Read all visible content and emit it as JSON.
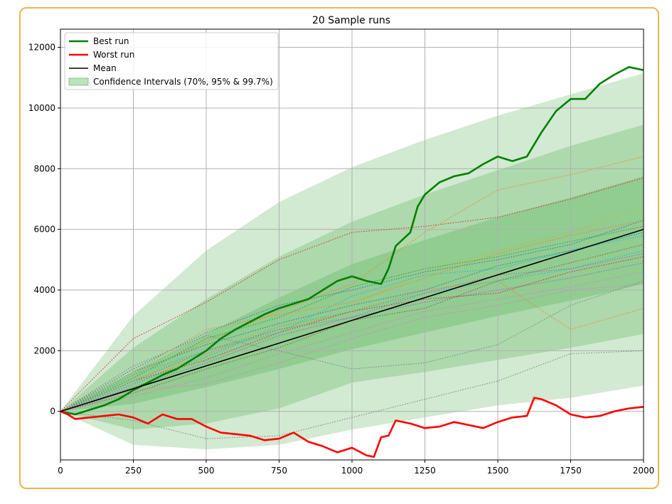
{
  "chart_data": {
    "type": "line",
    "title": "20 Sample runs",
    "xlabel": "",
    "ylabel": "",
    "xlim": [
      0,
      2000
    ],
    "ylim": [
      -1600,
      12600
    ],
    "x_ticks": [
      0,
      250,
      500,
      750,
      1000,
      1250,
      1500,
      1750,
      2000
    ],
    "y_ticks": [
      0,
      2000,
      4000,
      6000,
      8000,
      10000,
      12000
    ],
    "grid": true,
    "legend_position": "top-left",
    "colors": {
      "best": "#008000",
      "worst": "#ff0000",
      "mean": "#000000",
      "band": "#2ca02c",
      "grid": "#b0b0b0",
      "frame": "#e8b74c"
    },
    "legend": [
      {
        "label": "Best run",
        "style": "best"
      },
      {
        "label": "Worst run",
        "style": "worst"
      },
      {
        "label": "Mean",
        "style": "mean"
      },
      {
        "label": "Confidence Intervals (70%, 95% & 99.7%)",
        "style": "band"
      }
    ],
    "mean": {
      "x": [
        0,
        2000
      ],
      "y": [
        0,
        6000
      ]
    },
    "confidence_bands": [
      {
        "level": "99.7%",
        "x": [
          0,
          250,
          500,
          750,
          1000,
          1250,
          1500,
          1750,
          2000
        ],
        "upper": [
          0,
          3150,
          5300,
          6900,
          8050,
          8950,
          9750,
          10450,
          11150
        ],
        "lower": [
          0,
          -1100,
          -1250,
          -1100,
          -600,
          -200,
          200,
          450,
          850
        ]
      },
      {
        "level": "95%",
        "x": [
          0,
          250,
          500,
          750,
          1000,
          1250,
          1500,
          1750,
          2000
        ],
        "upper": [
          0,
          2100,
          3700,
          5100,
          6250,
          7150,
          7950,
          8750,
          9450
        ],
        "lower": [
          0,
          -600,
          -400,
          100,
          950,
          1300,
          1700,
          2100,
          2550
        ]
      },
      {
        "level": "70%",
        "x": [
          0,
          250,
          500,
          750,
          1000,
          1250,
          1500,
          1750,
          2000
        ],
        "upper": [
          0,
          1300,
          2550,
          3750,
          4850,
          5650,
          6400,
          7050,
          7750
        ],
        "lower": [
          0,
          250,
          800,
          1400,
          2050,
          2600,
          3150,
          3650,
          4200
        ]
      }
    ],
    "series": [
      {
        "name": "Best run",
        "style": "best",
        "x": [
          0,
          50,
          100,
          150,
          200,
          250,
          300,
          350,
          400,
          450,
          500,
          550,
          600,
          650,
          700,
          750,
          800,
          850,
          900,
          950,
          1000,
          1050,
          1100,
          1125,
          1150,
          1200,
          1225,
          1250,
          1300,
          1350,
          1400,
          1450,
          1500,
          1550,
          1600,
          1650,
          1700,
          1750,
          1800,
          1850,
          1900,
          1950,
          2000
        ],
        "y": [
          0,
          -100,
          50,
          200,
          400,
          700,
          950,
          1200,
          1400,
          1700,
          2000,
          2400,
          2700,
          2950,
          3200,
          3400,
          3550,
          3700,
          4000,
          4300,
          4450,
          4300,
          4200,
          4700,
          5450,
          5900,
          6750,
          7150,
          7550,
          7750,
          7850,
          8150,
          8400,
          8250,
          8400,
          9200,
          9900,
          10300,
          10300,
          10800,
          11100,
          11350,
          11250
        ]
      },
      {
        "name": "Worst run",
        "style": "worst",
        "x": [
          0,
          25,
          50,
          100,
          150,
          200,
          250,
          300,
          350,
          400,
          450,
          500,
          550,
          600,
          650,
          700,
          750,
          800,
          850,
          900,
          950,
          1000,
          1050,
          1075,
          1100,
          1125,
          1150,
          1200,
          1250,
          1300,
          1350,
          1400,
          1450,
          1500,
          1550,
          1600,
          1625,
          1650,
          1700,
          1750,
          1800,
          1850,
          1900,
          1950,
          2000
        ],
        "y": [
          0,
          -100,
          -250,
          -200,
          -150,
          -100,
          -200,
          -400,
          -100,
          -250,
          -250,
          -500,
          -700,
          -750,
          -800,
          -950,
          -900,
          -700,
          -1000,
          -1150,
          -1350,
          -1200,
          -1450,
          -1500,
          -850,
          -800,
          -300,
          -400,
          -550,
          -500,
          -350,
          -450,
          -550,
          -350,
          -200,
          -150,
          450,
          400,
          200,
          -100,
          -200,
          -150,
          0,
          100,
          150
        ]
      },
      {
        "name": "",
        "style": "dotted",
        "color": "#d62728",
        "x": [
          0,
          250,
          500,
          750,
          1000,
          1250,
          1500,
          1750,
          2000
        ],
        "y": [
          0,
          2400,
          3600,
          5000,
          5900,
          6100,
          6400,
          7000,
          7700
        ]
      },
      {
        "name": "",
        "style": "dotted",
        "color": "#ff7f0e",
        "x": [
          0,
          250,
          500,
          750,
          1000,
          1250,
          1500,
          1750,
          2000
        ],
        "y": [
          0,
          1200,
          2300,
          3300,
          4200,
          5900,
          7300,
          7800,
          8400
        ]
      },
      {
        "name": "",
        "style": "dotted",
        "color": "#ff7f0e",
        "x": [
          0,
          250,
          500,
          750,
          1000,
          1250,
          1500,
          1750,
          2000
        ],
        "y": [
          0,
          900,
          1900,
          2700,
          3300,
          4000,
          4300,
          2700,
          3400
        ]
      },
      {
        "name": "",
        "style": "dotted",
        "color": "#7f7f7f",
        "x": [
          0,
          250,
          500,
          750,
          1000,
          1250,
          1500,
          1750,
          2000
        ],
        "y": [
          0,
          -300,
          -900,
          -800,
          -200,
          400,
          1000,
          1900,
          2000
        ]
      },
      {
        "name": "",
        "style": "dotted",
        "color": "#7f7f7f",
        "x": [
          0,
          250,
          500,
          750,
          1000,
          1250,
          1500,
          1750,
          2000
        ],
        "y": [
          0,
          1500,
          2500,
          2000,
          1400,
          1600,
          2200,
          3500,
          4300
        ]
      },
      {
        "name": "",
        "style": "dotted",
        "color": "#1f77b4",
        "x": [
          0,
          250,
          500,
          750,
          1000,
          1250,
          1500,
          1750,
          2000
        ],
        "y": [
          0,
          1300,
          2200,
          2900,
          3500,
          4000,
          4800,
          5300,
          5900
        ]
      },
      {
        "name": "",
        "style": "dotted",
        "color": "#17becf",
        "x": [
          0,
          250,
          500,
          750,
          1000,
          1250,
          1500,
          1750,
          2000
        ],
        "y": [
          0,
          900,
          1800,
          2800,
          3300,
          3900,
          4300,
          4700,
          5300
        ]
      },
      {
        "name": "",
        "style": "dotted",
        "color": "#e377c2",
        "x": [
          0,
          250,
          500,
          750,
          1000,
          1250,
          1500,
          1750,
          2000
        ],
        "y": [
          0,
          700,
          900,
          1600,
          2400,
          3100,
          3500,
          4000,
          4200
        ]
      },
      {
        "name": "",
        "style": "dotted",
        "color": "#9467bd",
        "x": [
          0,
          250,
          500,
          750,
          1000,
          1250,
          1500,
          1750,
          2000
        ],
        "y": [
          0,
          800,
          1600,
          2500,
          3100,
          3600,
          4000,
          4400,
          4900
        ]
      },
      {
        "name": "",
        "style": "dotted",
        "color": "#bcbd22",
        "x": [
          0,
          250,
          500,
          750,
          1000,
          1250,
          1500,
          1750,
          2000
        ],
        "y": [
          0,
          1100,
          2000,
          2800,
          3500,
          4600,
          5300,
          5900,
          6700
        ]
      },
      {
        "name": "",
        "style": "dotted",
        "color": "#2ca02c",
        "x": [
          0,
          250,
          500,
          750,
          1000,
          1250,
          1500,
          1750,
          2000
        ],
        "y": [
          0,
          1100,
          2400,
          3100,
          4100,
          4700,
          5100,
          5600,
          6100
        ]
      },
      {
        "name": "",
        "style": "dotted",
        "color": "#8c564b",
        "x": [
          0,
          250,
          500,
          750,
          1000,
          1250,
          1500,
          1750,
          2000
        ],
        "y": [
          0,
          600,
          1400,
          2100,
          3000,
          3400,
          4300,
          4900,
          5500
        ]
      },
      {
        "name": "",
        "style": "dotted",
        "color": "#d62728",
        "x": [
          0,
          250,
          500,
          750,
          1000,
          1250,
          1500,
          1750,
          2000
        ],
        "y": [
          0,
          1000,
          1700,
          2600,
          3300,
          3700,
          3900,
          4600,
          5100
        ]
      },
      {
        "name": "",
        "style": "dotted",
        "color": "#1f77b4",
        "x": [
          0,
          250,
          500,
          750,
          1000,
          1250,
          1500,
          1750,
          2000
        ],
        "y": [
          0,
          1400,
          2600,
          3500,
          4000,
          4600,
          5000,
          5500,
          6300
        ]
      },
      {
        "name": "",
        "style": "dotted",
        "color": "#17becf",
        "x": [
          0,
          250,
          500,
          750,
          1000,
          1250,
          1500,
          1750,
          2000
        ],
        "y": [
          0,
          1200,
          2000,
          2600,
          3800,
          4500,
          4700,
          5300,
          5800
        ]
      },
      {
        "name": "",
        "style": "dotted",
        "color": "#e377c2",
        "x": [
          0,
          250,
          500,
          750,
          1000,
          1250,
          1500,
          1750,
          2000
        ],
        "y": [
          0,
          500,
          1100,
          1900,
          2600,
          3300,
          3700,
          4100,
          4600
        ]
      },
      {
        "name": "",
        "style": "dotted",
        "color": "#ff7f0e",
        "x": [
          0,
          250,
          500,
          750,
          1000,
          1250,
          1500,
          1750,
          2000
        ],
        "y": [
          0,
          1300,
          2700,
          3200,
          3600,
          4400,
          5200,
          5800,
          6300
        ]
      },
      {
        "name": "",
        "style": "dotted",
        "color": "#9467bd",
        "x": [
          0,
          250,
          500,
          750,
          1000,
          1250,
          1500,
          1750,
          2000
        ],
        "y": [
          0,
          1000,
          2000,
          2700,
          3100,
          3900,
          4500,
          4700,
          5200
        ]
      }
    ]
  }
}
